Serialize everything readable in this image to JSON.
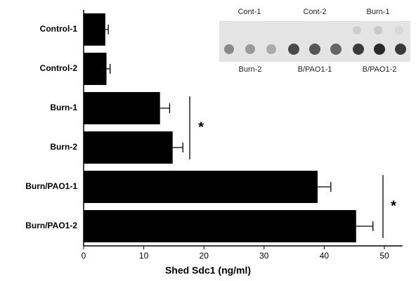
{
  "chart_data": {
    "type": "barh",
    "x_label": "Shed Sdc1 (ng/ml)",
    "categories": [
      "Control-1",
      "Control-2",
      "Burn-1",
      "Burn-2",
      "Burn/PAO1-1",
      "Burn/PAO1-2"
    ],
    "values": [
      3.6,
      3.8,
      12.7,
      14.8,
      38.9,
      45.3
    ],
    "errors": [
      0.5,
      0.6,
      1.6,
      1.7,
      2.2,
      2.8
    ],
    "color": "#000000",
    "xlim": [
      0,
      53
    ],
    "xticks": [
      0,
      10,
      20,
      30,
      40,
      50
    ],
    "annotations": [
      "*",
      "*"
    ],
    "inset": {
      "top_labels": [
        "Cont-1",
        "Cont-2",
        "Burn-1"
      ],
      "bottom_labels": [
        "Burn-2",
        "B/PAO1-1",
        "B/PAO1-2"
      ]
    }
  }
}
